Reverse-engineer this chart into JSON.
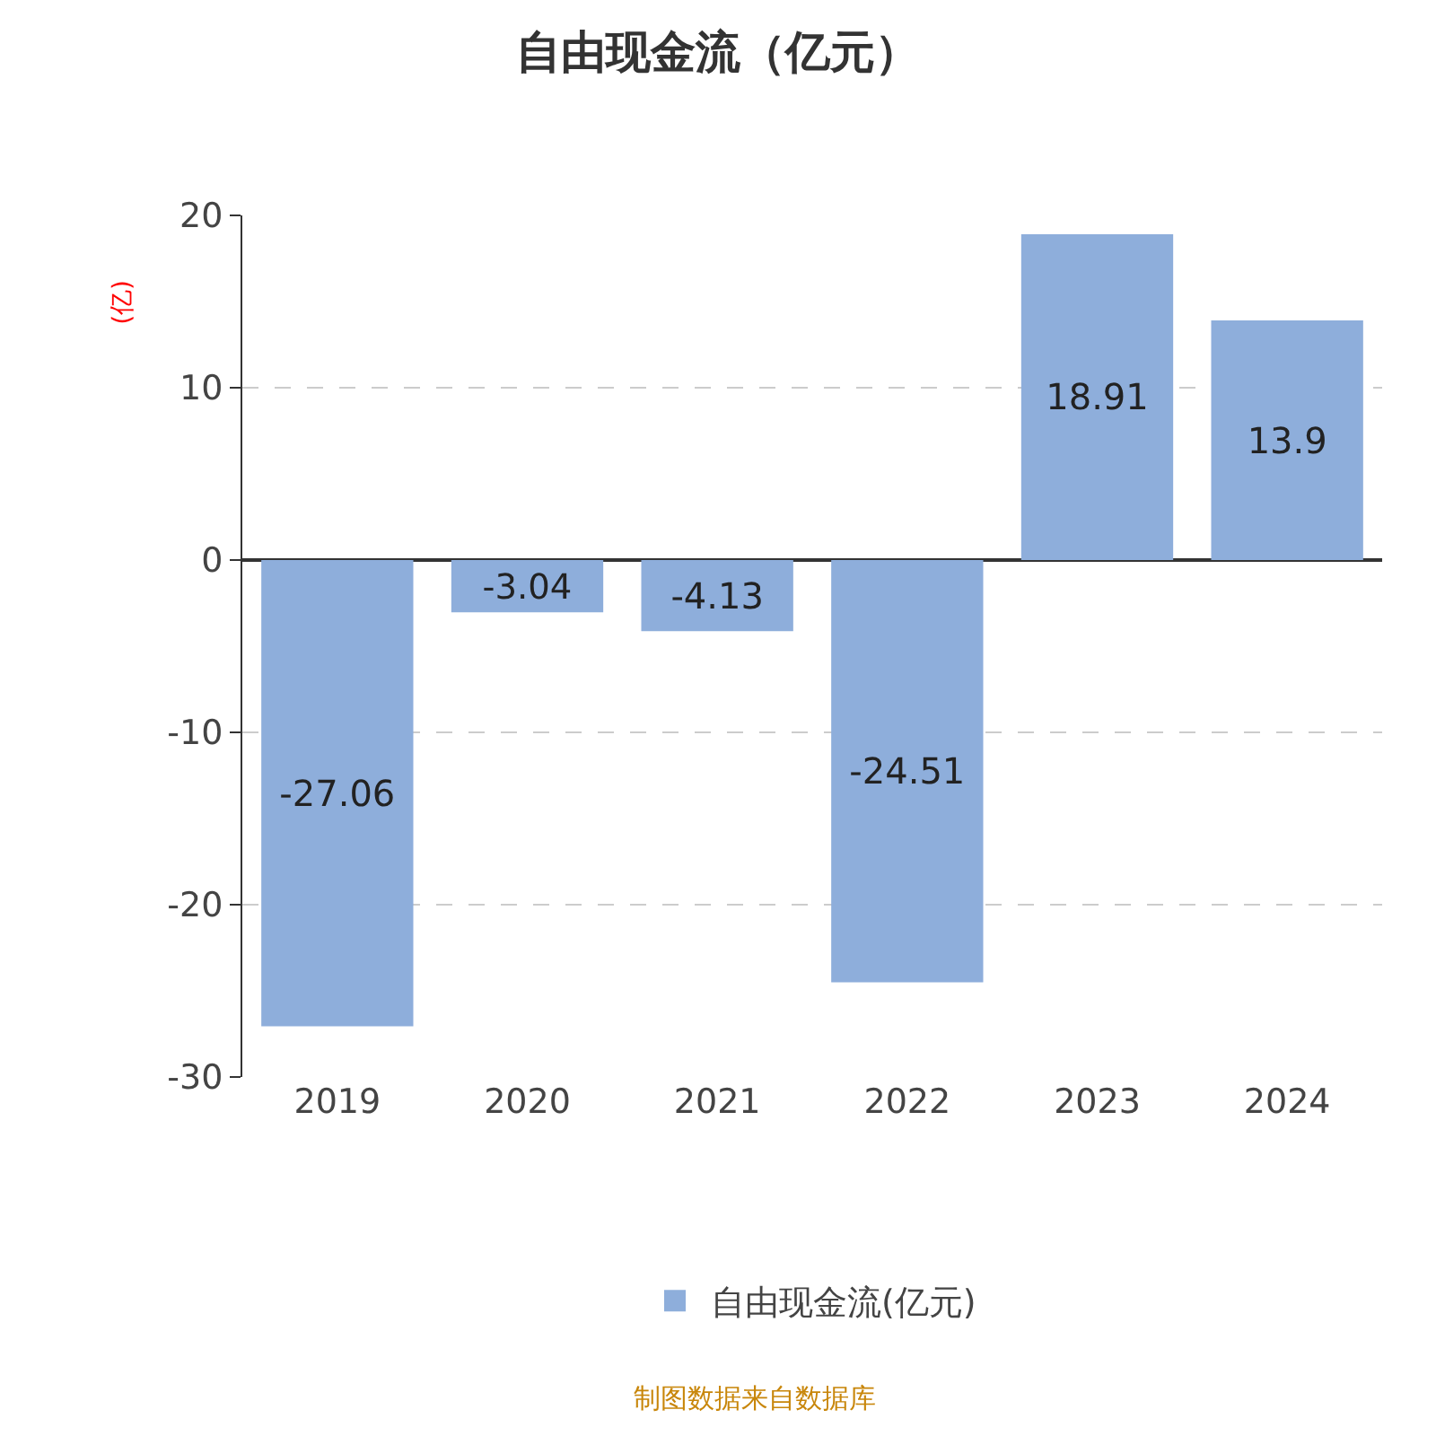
{
  "chart_data": {
    "type": "bar",
    "title": "自由现金流（亿元）",
    "ylabel": "(亿)",
    "categories": [
      "2019",
      "2020",
      "2021",
      "2022",
      "2023",
      "2024"
    ],
    "series": [
      {
        "name": "自由现金流(亿元)",
        "color": "#8eaedb",
        "values": [
          -27.06,
          -3.04,
          -4.13,
          -24.51,
          18.91,
          13.9
        ]
      }
    ],
    "ylim": [
      -30,
      20
    ],
    "yticks": [
      -30,
      -20,
      -10,
      0,
      10,
      20
    ],
    "grid": "y",
    "legend": "bottom",
    "data_labels": true,
    "annotations": [
      "制图数据来自数据库"
    ]
  }
}
